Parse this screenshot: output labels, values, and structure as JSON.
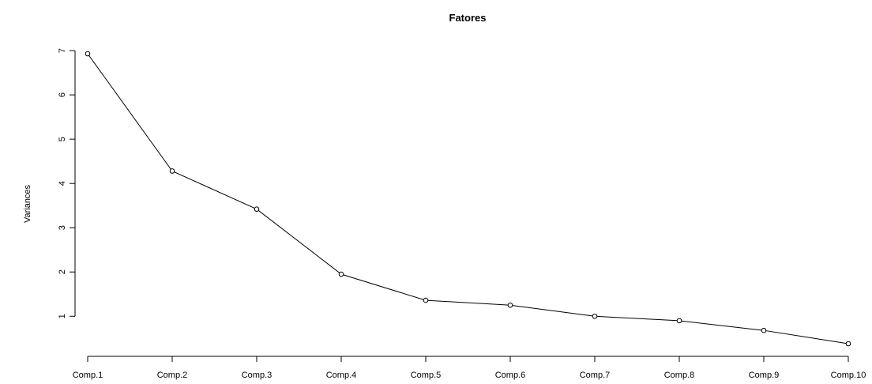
{
  "chart_data": {
    "type": "line",
    "title": "Fatores",
    "xlabel": "",
    "ylabel": "Variances",
    "categories": [
      "Comp.1",
      "Comp.2",
      "Comp.3",
      "Comp.4",
      "Comp.5",
      "Comp.6",
      "Comp.7",
      "Comp.8",
      "Comp.9",
      "Comp.10"
    ],
    "values": [
      6.93,
      4.28,
      3.42,
      1.95,
      1.36,
      1.25,
      1.0,
      0.9,
      0.68,
      0.38
    ],
    "ylim": [
      0.38,
      6.93
    ],
    "yticks": [
      "1",
      "2",
      "3",
      "4",
      "5",
      "6",
      "7"
    ],
    "grid": false,
    "markers": "open-circle",
    "line_color": "#000000"
  }
}
